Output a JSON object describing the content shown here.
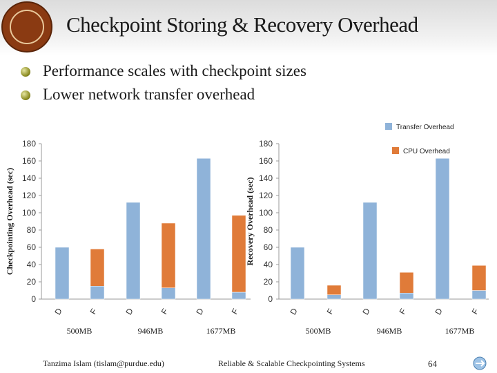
{
  "slide": {
    "title": "Checkpoint Storing & Recovery Overhead",
    "bullets": [
      "Performance scales with checkpoint sizes",
      "Lower network transfer overhead"
    ],
    "footer_left": "Tanzima Islam (tislam@purdue.edu)",
    "footer_center": "Reliable & Scalable Checkpointing Systems",
    "page_number": "64",
    "logo_icon": "university-seal-icon",
    "nav_icon": "slide-nav-icon"
  },
  "legend": [
    {
      "label": "Transfer Overhead",
      "color": "#8fb3d9"
    },
    {
      "label": "CPU Overhead",
      "color": "#e07b39"
    }
  ],
  "chart_data": [
    {
      "type": "bar",
      "stacked": true,
      "ylabel": "Checkpointing Overhead (sec)",
      "ylim": [
        0,
        180
      ],
      "yticks": [
        "0",
        "20",
        "40",
        "60",
        "80",
        "100",
        "120",
        "140",
        "160",
        "180"
      ],
      "bars": [
        {
          "label": "D",
          "group": "500MB",
          "transfer": 60,
          "cpu": 0
        },
        {
          "label": "F",
          "group": "500MB",
          "transfer": 15,
          "cpu": 43
        },
        {
          "label": "D",
          "group": "946MB",
          "transfer": 112,
          "cpu": 0
        },
        {
          "label": "F",
          "group": "946MB",
          "transfer": 13,
          "cpu": 75
        },
        {
          "label": "D",
          "group": "1677MB",
          "transfer": 163,
          "cpu": 0
        },
        {
          "label": "F",
          "group": "1677MB",
          "transfer": 8,
          "cpu": 89
        }
      ],
      "groups": [
        "500MB",
        "946MB",
        "1677MB"
      ]
    },
    {
      "type": "bar",
      "stacked": true,
      "ylabel": "Recovery Overhead (sec)",
      "ylim": [
        0,
        180
      ],
      "yticks": [
        "0",
        "20",
        "40",
        "60",
        "80",
        "100",
        "120",
        "140",
        "160",
        "180"
      ],
      "bars": [
        {
          "label": "D",
          "group": "500MB",
          "transfer": 60,
          "cpu": 0
        },
        {
          "label": "F",
          "group": "500MB",
          "transfer": 5,
          "cpu": 11
        },
        {
          "label": "D",
          "group": "946MB",
          "transfer": 112,
          "cpu": 0
        },
        {
          "label": "F",
          "group": "946MB",
          "transfer": 7,
          "cpu": 24
        },
        {
          "label": "D",
          "group": "1677MB",
          "transfer": 163,
          "cpu": 0
        },
        {
          "label": "F",
          "group": "1677MB",
          "transfer": 10,
          "cpu": 29
        }
      ],
      "groups": [
        "500MB",
        "946MB",
        "1677MB"
      ]
    }
  ]
}
